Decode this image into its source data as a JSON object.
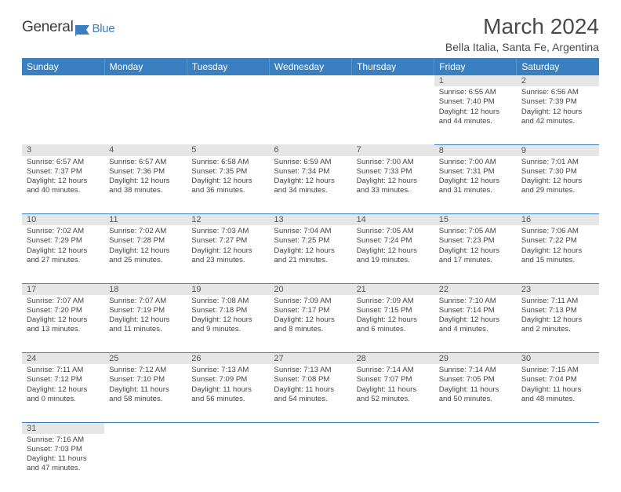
{
  "logo": {
    "general": "General",
    "blue": "Blue",
    "flag_color": "#3a7fbf"
  },
  "title": "March 2024",
  "location": "Bella Italia, Santa Fe, Argentina",
  "colors": {
    "header_bg": "#3a7fbf",
    "header_text": "#ffffff",
    "daynum_bg": "#e6e6e6",
    "body_text": "#444444",
    "cell_divider": "#3a7fbf"
  },
  "fonts": {
    "title_size": 28,
    "location_size": 14,
    "weekday_size": 12,
    "daynum_size": 11,
    "body_size": 9.6
  },
  "weekdays": [
    "Sunday",
    "Monday",
    "Tuesday",
    "Wednesday",
    "Thursday",
    "Friday",
    "Saturday"
  ],
  "weeks": [
    [
      null,
      null,
      null,
      null,
      null,
      {
        "n": "1",
        "sr": "6:55 AM",
        "ss": "7:40 PM",
        "dl": "12 hours and 44 minutes."
      },
      {
        "n": "2",
        "sr": "6:56 AM",
        "ss": "7:39 PM",
        "dl": "12 hours and 42 minutes."
      }
    ],
    [
      {
        "n": "3",
        "sr": "6:57 AM",
        "ss": "7:37 PM",
        "dl": "12 hours and 40 minutes."
      },
      {
        "n": "4",
        "sr": "6:57 AM",
        "ss": "7:36 PM",
        "dl": "12 hours and 38 minutes."
      },
      {
        "n": "5",
        "sr": "6:58 AM",
        "ss": "7:35 PM",
        "dl": "12 hours and 36 minutes."
      },
      {
        "n": "6",
        "sr": "6:59 AM",
        "ss": "7:34 PM",
        "dl": "12 hours and 34 minutes."
      },
      {
        "n": "7",
        "sr": "7:00 AM",
        "ss": "7:33 PM",
        "dl": "12 hours and 33 minutes."
      },
      {
        "n": "8",
        "sr": "7:00 AM",
        "ss": "7:31 PM",
        "dl": "12 hours and 31 minutes."
      },
      {
        "n": "9",
        "sr": "7:01 AM",
        "ss": "7:30 PM",
        "dl": "12 hours and 29 minutes."
      }
    ],
    [
      {
        "n": "10",
        "sr": "7:02 AM",
        "ss": "7:29 PM",
        "dl": "12 hours and 27 minutes."
      },
      {
        "n": "11",
        "sr": "7:02 AM",
        "ss": "7:28 PM",
        "dl": "12 hours and 25 minutes."
      },
      {
        "n": "12",
        "sr": "7:03 AM",
        "ss": "7:27 PM",
        "dl": "12 hours and 23 minutes."
      },
      {
        "n": "13",
        "sr": "7:04 AM",
        "ss": "7:25 PM",
        "dl": "12 hours and 21 minutes."
      },
      {
        "n": "14",
        "sr": "7:05 AM",
        "ss": "7:24 PM",
        "dl": "12 hours and 19 minutes."
      },
      {
        "n": "15",
        "sr": "7:05 AM",
        "ss": "7:23 PM",
        "dl": "12 hours and 17 minutes."
      },
      {
        "n": "16",
        "sr": "7:06 AM",
        "ss": "7:22 PM",
        "dl": "12 hours and 15 minutes."
      }
    ],
    [
      {
        "n": "17",
        "sr": "7:07 AM",
        "ss": "7:20 PM",
        "dl": "12 hours and 13 minutes."
      },
      {
        "n": "18",
        "sr": "7:07 AM",
        "ss": "7:19 PM",
        "dl": "12 hours and 11 minutes."
      },
      {
        "n": "19",
        "sr": "7:08 AM",
        "ss": "7:18 PM",
        "dl": "12 hours and 9 minutes."
      },
      {
        "n": "20",
        "sr": "7:09 AM",
        "ss": "7:17 PM",
        "dl": "12 hours and 8 minutes."
      },
      {
        "n": "21",
        "sr": "7:09 AM",
        "ss": "7:15 PM",
        "dl": "12 hours and 6 minutes."
      },
      {
        "n": "22",
        "sr": "7:10 AM",
        "ss": "7:14 PM",
        "dl": "12 hours and 4 minutes."
      },
      {
        "n": "23",
        "sr": "7:11 AM",
        "ss": "7:13 PM",
        "dl": "12 hours and 2 minutes."
      }
    ],
    [
      {
        "n": "24",
        "sr": "7:11 AM",
        "ss": "7:12 PM",
        "dl": "12 hours and 0 minutes."
      },
      {
        "n": "25",
        "sr": "7:12 AM",
        "ss": "7:10 PM",
        "dl": "11 hours and 58 minutes."
      },
      {
        "n": "26",
        "sr": "7:13 AM",
        "ss": "7:09 PM",
        "dl": "11 hours and 56 minutes."
      },
      {
        "n": "27",
        "sr": "7:13 AM",
        "ss": "7:08 PM",
        "dl": "11 hours and 54 minutes."
      },
      {
        "n": "28",
        "sr": "7:14 AM",
        "ss": "7:07 PM",
        "dl": "11 hours and 52 minutes."
      },
      {
        "n": "29",
        "sr": "7:14 AM",
        "ss": "7:05 PM",
        "dl": "11 hours and 50 minutes."
      },
      {
        "n": "30",
        "sr": "7:15 AM",
        "ss": "7:04 PM",
        "dl": "11 hours and 48 minutes."
      }
    ],
    [
      {
        "n": "31",
        "sr": "7:16 AM",
        "ss": "7:03 PM",
        "dl": "11 hours and 47 minutes."
      },
      null,
      null,
      null,
      null,
      null,
      null
    ]
  ],
  "labels": {
    "sunrise": "Sunrise:",
    "sunset": "Sunset:",
    "daylight": "Daylight:"
  }
}
